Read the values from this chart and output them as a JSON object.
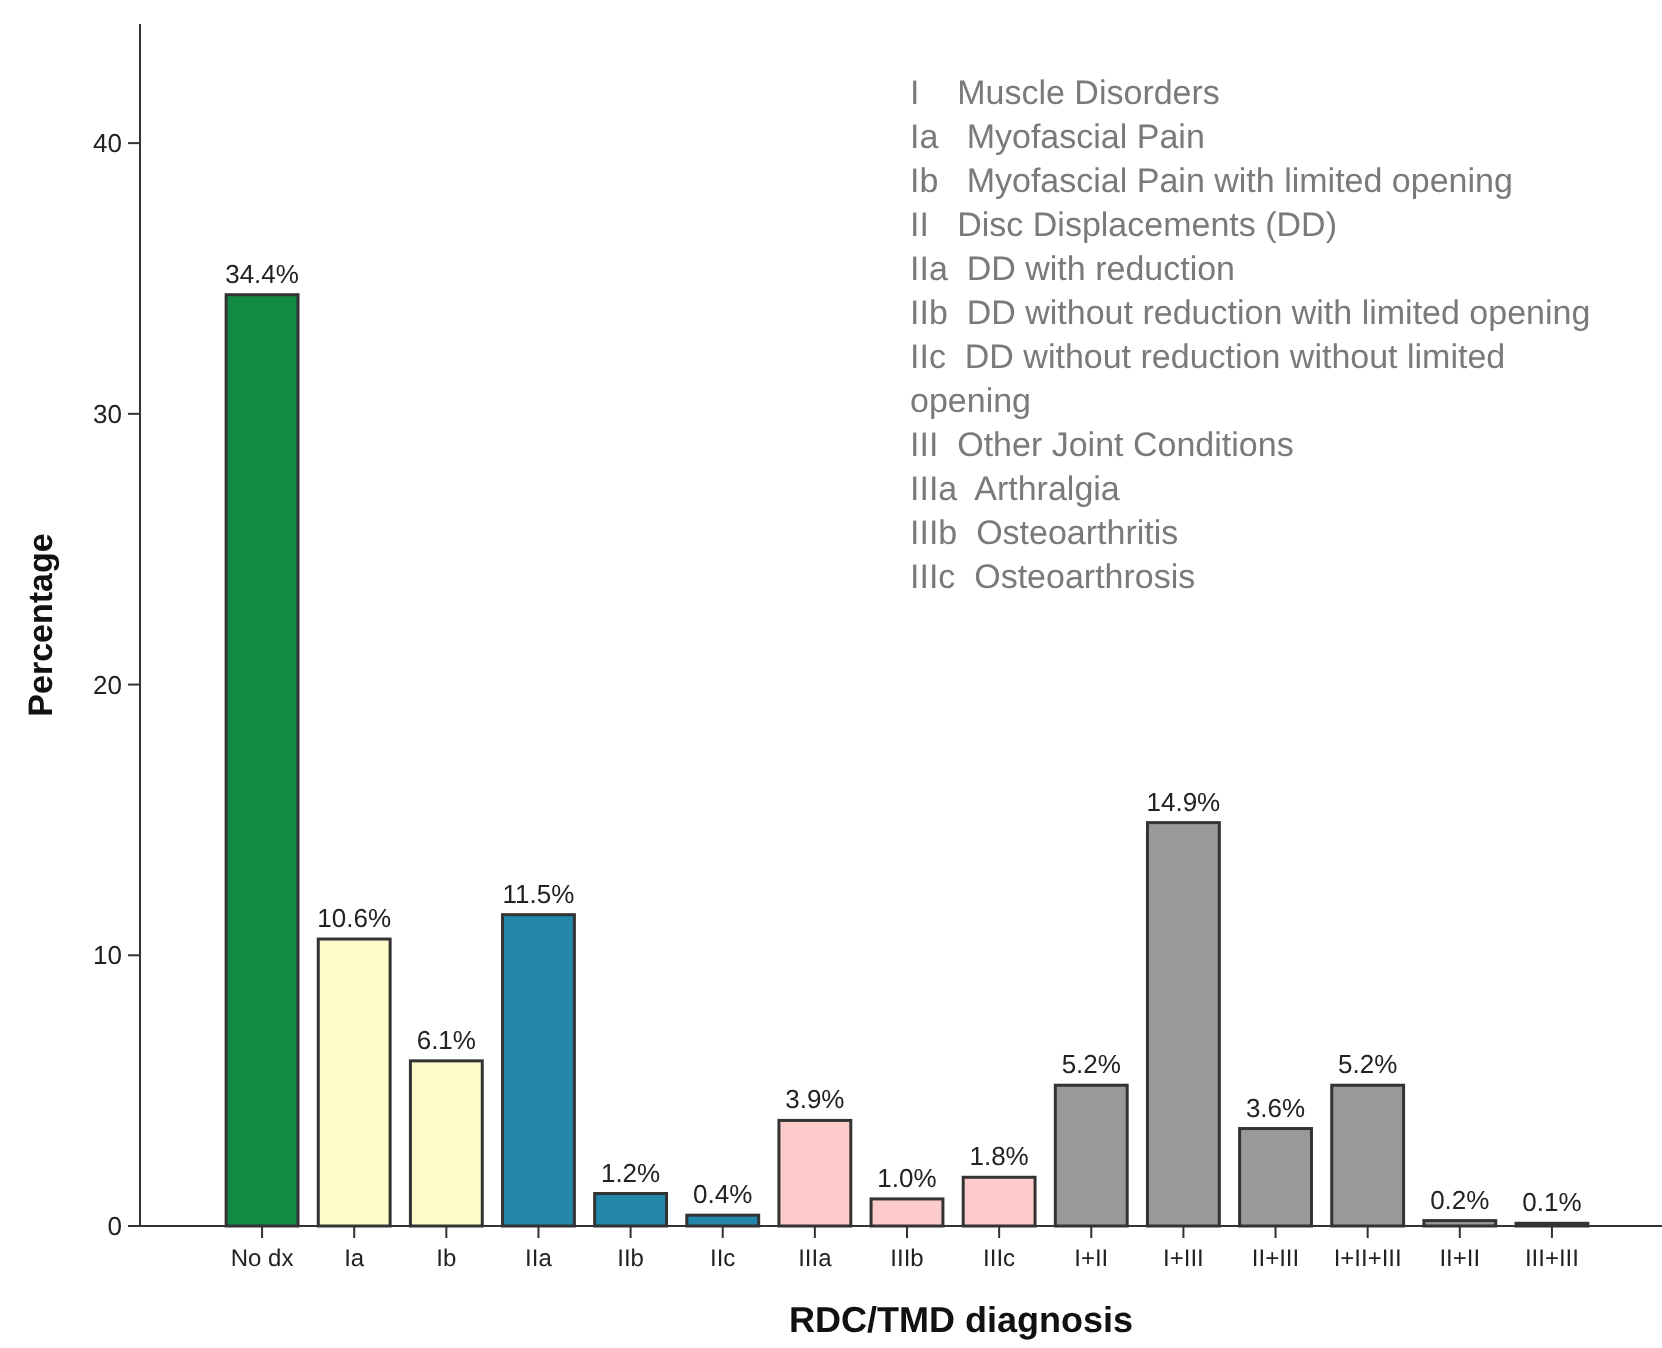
{
  "chart_data": {
    "type": "bar",
    "xlabel": "RDC/TMD diagnosis",
    "ylabel": "Percentage",
    "categories": [
      "No dx",
      "Ia",
      "Ib",
      "IIa",
      "IIb",
      "IIc",
      "IIIa",
      "IIIb",
      "IIIc",
      "I+II",
      "I+III",
      "II+III",
      "I+II+III",
      "II+II",
      "III+III"
    ],
    "values": [
      34.4,
      10.6,
      6.1,
      11.5,
      1.2,
      0.4,
      3.9,
      1.0,
      1.8,
      5.2,
      14.9,
      3.6,
      5.2,
      0.2,
      0.1
    ],
    "value_labels": [
      "34.4%",
      "10.6%",
      "6.1%",
      "11.5%",
      "1.2%",
      "0.4%",
      "3.9%",
      "1.0%",
      "1.8%",
      "5.2%",
      "14.9%",
      "3.6%",
      "5.2%",
      "0.2%",
      "0.1%"
    ],
    "colors": [
      "#138a44",
      "#fefbc8",
      "#fefbc8",
      "#2387ab",
      "#2387ab",
      "#2387ab",
      "#fecbcb",
      "#fecbcb",
      "#fecbcb",
      "#999999",
      "#999999",
      "#999999",
      "#999999",
      "#999999",
      "#999999"
    ],
    "ylim": [
      0,
      44.4
    ],
    "yticks": [
      0,
      10,
      20,
      30,
      40
    ],
    "grid": false,
    "annotations": [
      "I    Muscle Disorders",
      "Ia   Myofascial Pain",
      "Ib   Myofascial Pain with limited opening",
      "II   Disc Displacements (DD)",
      "IIa  DD with reduction",
      "IIb  DD without reduction with limited opening",
      "IIc  DD without reduction without limited opening",
      "III  Other Joint Conditions",
      "IIIa  Arthralgia",
      "IIIb  Osteoarthritis",
      "IIIc  Osteoarthrosis"
    ]
  }
}
